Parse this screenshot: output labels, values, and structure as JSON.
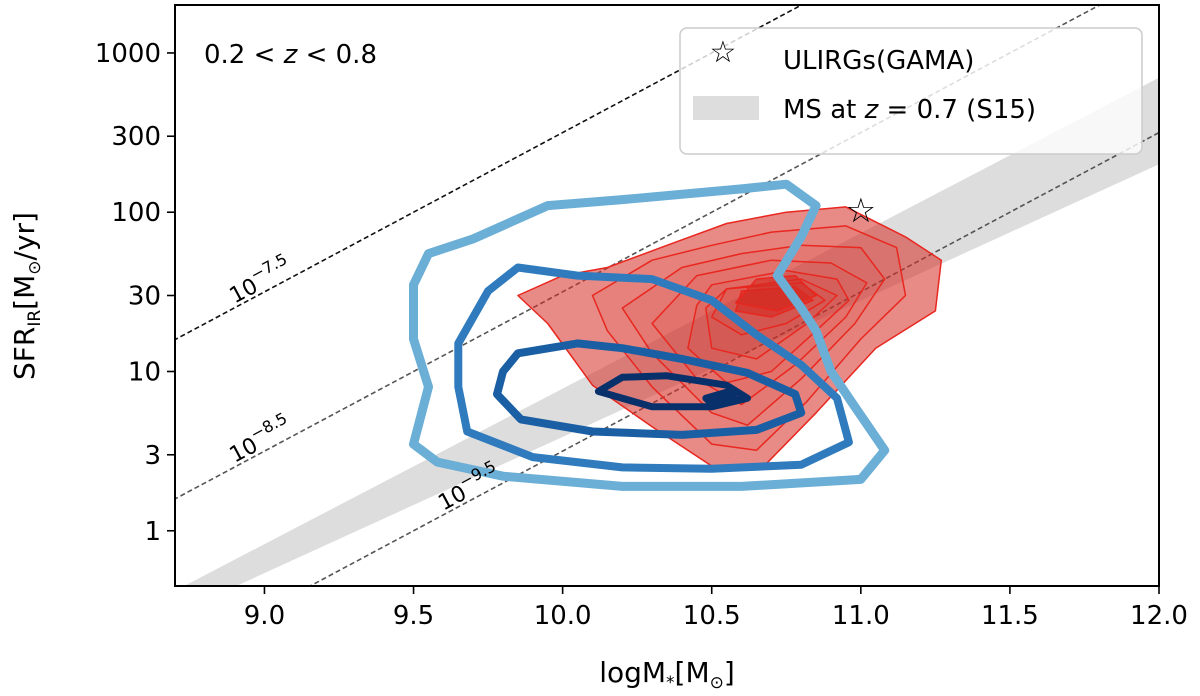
{
  "chart_data": {
    "type": "contour",
    "x_axis": {
      "label_main": "logM",
      "label_sub": "*",
      "label_unit": "[M",
      "label_unit_sub": "⊙",
      "label_close": "]",
      "range": [
        8.7,
        12.0
      ],
      "ticks": [
        9.0,
        9.5,
        10.0,
        10.5,
        11.0,
        11.5,
        12.0
      ],
      "tick_labels": [
        "9.0",
        "9.5",
        "10.0",
        "10.5",
        "11.0",
        "11.5",
        "12.0"
      ]
    },
    "y_axis": {
      "label_main": "SFR",
      "label_sub": "IR",
      "label_unit": "[M",
      "label_unit_sub": "⊙",
      "label_close": "/yr]",
      "scale": "log",
      "range": [
        0.45,
        2000
      ],
      "ticks": [
        1,
        3,
        10,
        30,
        100,
        300,
        1000
      ],
      "tick_labels": [
        "1",
        "3",
        "10",
        "30",
        "100",
        "300",
        "1000"
      ]
    },
    "annotation": {
      "parts": [
        "0.2 < ",
        "z",
        " < 0.8"
      ]
    },
    "ssfr_lines": [
      {
        "base": "10",
        "exp": "−7.5",
        "log_ssfr": -7.5,
        "label_at_logm": 8.9
      },
      {
        "base": "10",
        "exp": "−8.5",
        "log_ssfr": -8.5,
        "label_at_logm": 8.9
      },
      {
        "base": "10",
        "exp": "−9.5",
        "log_ssfr": -9.5,
        "label_at_logm": 9.6
      }
    ],
    "main_sequence_band": {
      "label": "MS at z = 0.7 (S15)",
      "label_parts": [
        "MS at ",
        "z",
        " = 0.7 (S15)"
      ],
      "color": "#dddddd",
      "lower": [
        [
          8.7,
          0.3
        ],
        [
          12.0,
          200
        ]
      ],
      "upper": [
        [
          8.7,
          0.42
        ],
        [
          12.0,
          700
        ]
      ]
    },
    "ulirg_point": {
      "label": "ULIRGs(GAMA)",
      "logm": 11.0,
      "sfr": 103
    },
    "blue_contours": {
      "colors": [
        "#6baed6",
        "#2f7bbd",
        "#1a5fa3",
        "#08306b"
      ],
      "levels": [
        [
          [
            10.75,
            150
          ],
          [
            10.6,
            140
          ],
          [
            10.2,
            120
          ],
          [
            9.95,
            110
          ],
          [
            9.7,
            68
          ],
          [
            9.55,
            55
          ],
          [
            9.5,
            35
          ],
          [
            9.5,
            16
          ],
          [
            9.55,
            8
          ],
          [
            9.5,
            3.5
          ],
          [
            9.58,
            2.7
          ],
          [
            9.8,
            2.2
          ],
          [
            10.2,
            1.9
          ],
          [
            10.6,
            1.9
          ],
          [
            11.0,
            2.1
          ],
          [
            11.08,
            3.2
          ],
          [
            10.98,
            6.0
          ],
          [
            10.9,
            10
          ],
          [
            10.85,
            18
          ],
          [
            10.8,
            25
          ],
          [
            10.72,
            40
          ],
          [
            10.8,
            70
          ],
          [
            10.85,
            110
          ],
          [
            10.75,
            150
          ]
        ],
        [
          [
            10.5,
            28
          ],
          [
            10.3,
            38
          ],
          [
            10.05,
            40
          ],
          [
            9.85,
            45
          ],
          [
            9.75,
            32
          ],
          [
            9.65,
            15
          ],
          [
            9.65,
            8
          ],
          [
            9.68,
            4.2
          ],
          [
            9.9,
            2.9
          ],
          [
            10.2,
            2.5
          ],
          [
            10.5,
            2.45
          ],
          [
            10.8,
            2.6
          ],
          [
            10.96,
            3.6
          ],
          [
            10.92,
            6.8
          ],
          [
            10.8,
            11
          ],
          [
            10.65,
            17
          ],
          [
            10.5,
            28
          ]
        ],
        [
          [
            10.05,
            15
          ],
          [
            9.85,
            13
          ],
          [
            9.8,
            10
          ],
          [
            9.78,
            7.2
          ],
          [
            9.86,
            5.0
          ],
          [
            10.1,
            4.2
          ],
          [
            10.4,
            4.0
          ],
          [
            10.65,
            4.3
          ],
          [
            10.8,
            5.5
          ],
          [
            10.78,
            7.2
          ],
          [
            10.62,
            9.8
          ],
          [
            10.4,
            12
          ],
          [
            10.2,
            14
          ],
          [
            10.05,
            15
          ]
        ],
        [
          [
            10.12,
            7.5
          ],
          [
            10.2,
            9.2
          ],
          [
            10.35,
            9.4
          ],
          [
            10.55,
            8.2
          ],
          [
            10.62,
            6.8
          ],
          [
            10.5,
            6.0
          ],
          [
            10.3,
            6.0
          ],
          [
            10.12,
            7.5
          ]
        ],
        [
          [
            10.48,
            6.8
          ],
          [
            10.55,
            7.4
          ],
          [
            10.58,
            6.7
          ],
          [
            10.5,
            6.3
          ],
          [
            10.48,
            6.8
          ]
        ]
      ]
    },
    "red_contours": {
      "fill_color": "#d62a22",
      "line_color": "#e8271f",
      "levels": [
        [
          [
            10.15,
            45
          ],
          [
            10.35,
            62
          ],
          [
            10.55,
            85
          ],
          [
            10.75,
            100
          ],
          [
            10.95,
            108
          ],
          [
            11.15,
            70
          ],
          [
            11.27,
            50
          ],
          [
            11.25,
            24
          ],
          [
            11.05,
            14
          ],
          [
            10.85,
            5.5
          ],
          [
            10.68,
            2.6
          ],
          [
            10.5,
            2.55
          ],
          [
            10.3,
            4.5
          ],
          [
            10.1,
            8.2
          ],
          [
            9.95,
            20
          ],
          [
            9.85,
            30
          ],
          [
            10.0,
            40
          ],
          [
            10.15,
            45
          ]
        ],
        [
          [
            10.3,
            50
          ],
          [
            10.5,
            62
          ],
          [
            10.7,
            75
          ],
          [
            10.95,
            82
          ],
          [
            11.12,
            60
          ],
          [
            11.15,
            30
          ],
          [
            11.0,
            16
          ],
          [
            10.82,
            6.5
          ],
          [
            10.65,
            3.2
          ],
          [
            10.5,
            3.5
          ],
          [
            10.3,
            8.0
          ],
          [
            10.15,
            18
          ],
          [
            10.1,
            30
          ],
          [
            10.3,
            50
          ]
        ],
        [
          [
            10.4,
            45
          ],
          [
            10.6,
            55
          ],
          [
            10.8,
            62
          ],
          [
            11.0,
            60
          ],
          [
            11.08,
            38
          ],
          [
            10.98,
            20
          ],
          [
            10.8,
            9
          ],
          [
            10.62,
            4.6
          ],
          [
            10.5,
            5.5
          ],
          [
            10.3,
            13
          ],
          [
            10.2,
            25
          ],
          [
            10.4,
            45
          ]
        ],
        [
          [
            10.45,
            40
          ],
          [
            10.7,
            50
          ],
          [
            10.9,
            48
          ],
          [
            11.02,
            36
          ],
          [
            10.95,
            22
          ],
          [
            10.78,
            11
          ],
          [
            10.6,
            6.2
          ],
          [
            10.45,
            9
          ],
          [
            10.3,
            20
          ],
          [
            10.45,
            40
          ]
        ],
        [
          [
            10.5,
            35
          ],
          [
            10.75,
            43
          ],
          [
            10.92,
            38
          ],
          [
            10.96,
            28
          ],
          [
            10.85,
            18
          ],
          [
            10.7,
            10
          ],
          [
            10.55,
            8.5
          ],
          [
            10.42,
            14
          ],
          [
            10.45,
            26
          ],
          [
            10.5,
            35
          ]
        ],
        [
          [
            10.55,
            33
          ],
          [
            10.8,
            38
          ],
          [
            10.92,
            30
          ],
          [
            10.82,
            20
          ],
          [
            10.65,
            12
          ],
          [
            10.5,
            14
          ],
          [
            10.48,
            25
          ],
          [
            10.55,
            33
          ]
        ],
        [
          [
            10.55,
            33
          ],
          [
            10.8,
            36
          ],
          [
            10.88,
            28
          ],
          [
            10.75,
            20
          ],
          [
            10.6,
            17
          ],
          [
            10.5,
            22
          ],
          [
            10.55,
            33
          ]
        ],
        [
          [
            10.6,
            32
          ],
          [
            10.78,
            34
          ],
          [
            10.84,
            28
          ],
          [
            10.7,
            22
          ],
          [
            10.58,
            24
          ],
          [
            10.6,
            32
          ]
        ],
        [
          [
            10.65,
            38
          ],
          [
            10.78,
            40
          ],
          [
            10.85,
            30
          ],
          [
            10.72,
            24
          ],
          [
            10.58,
            27
          ],
          [
            10.65,
            38
          ]
        ]
      ]
    }
  }
}
